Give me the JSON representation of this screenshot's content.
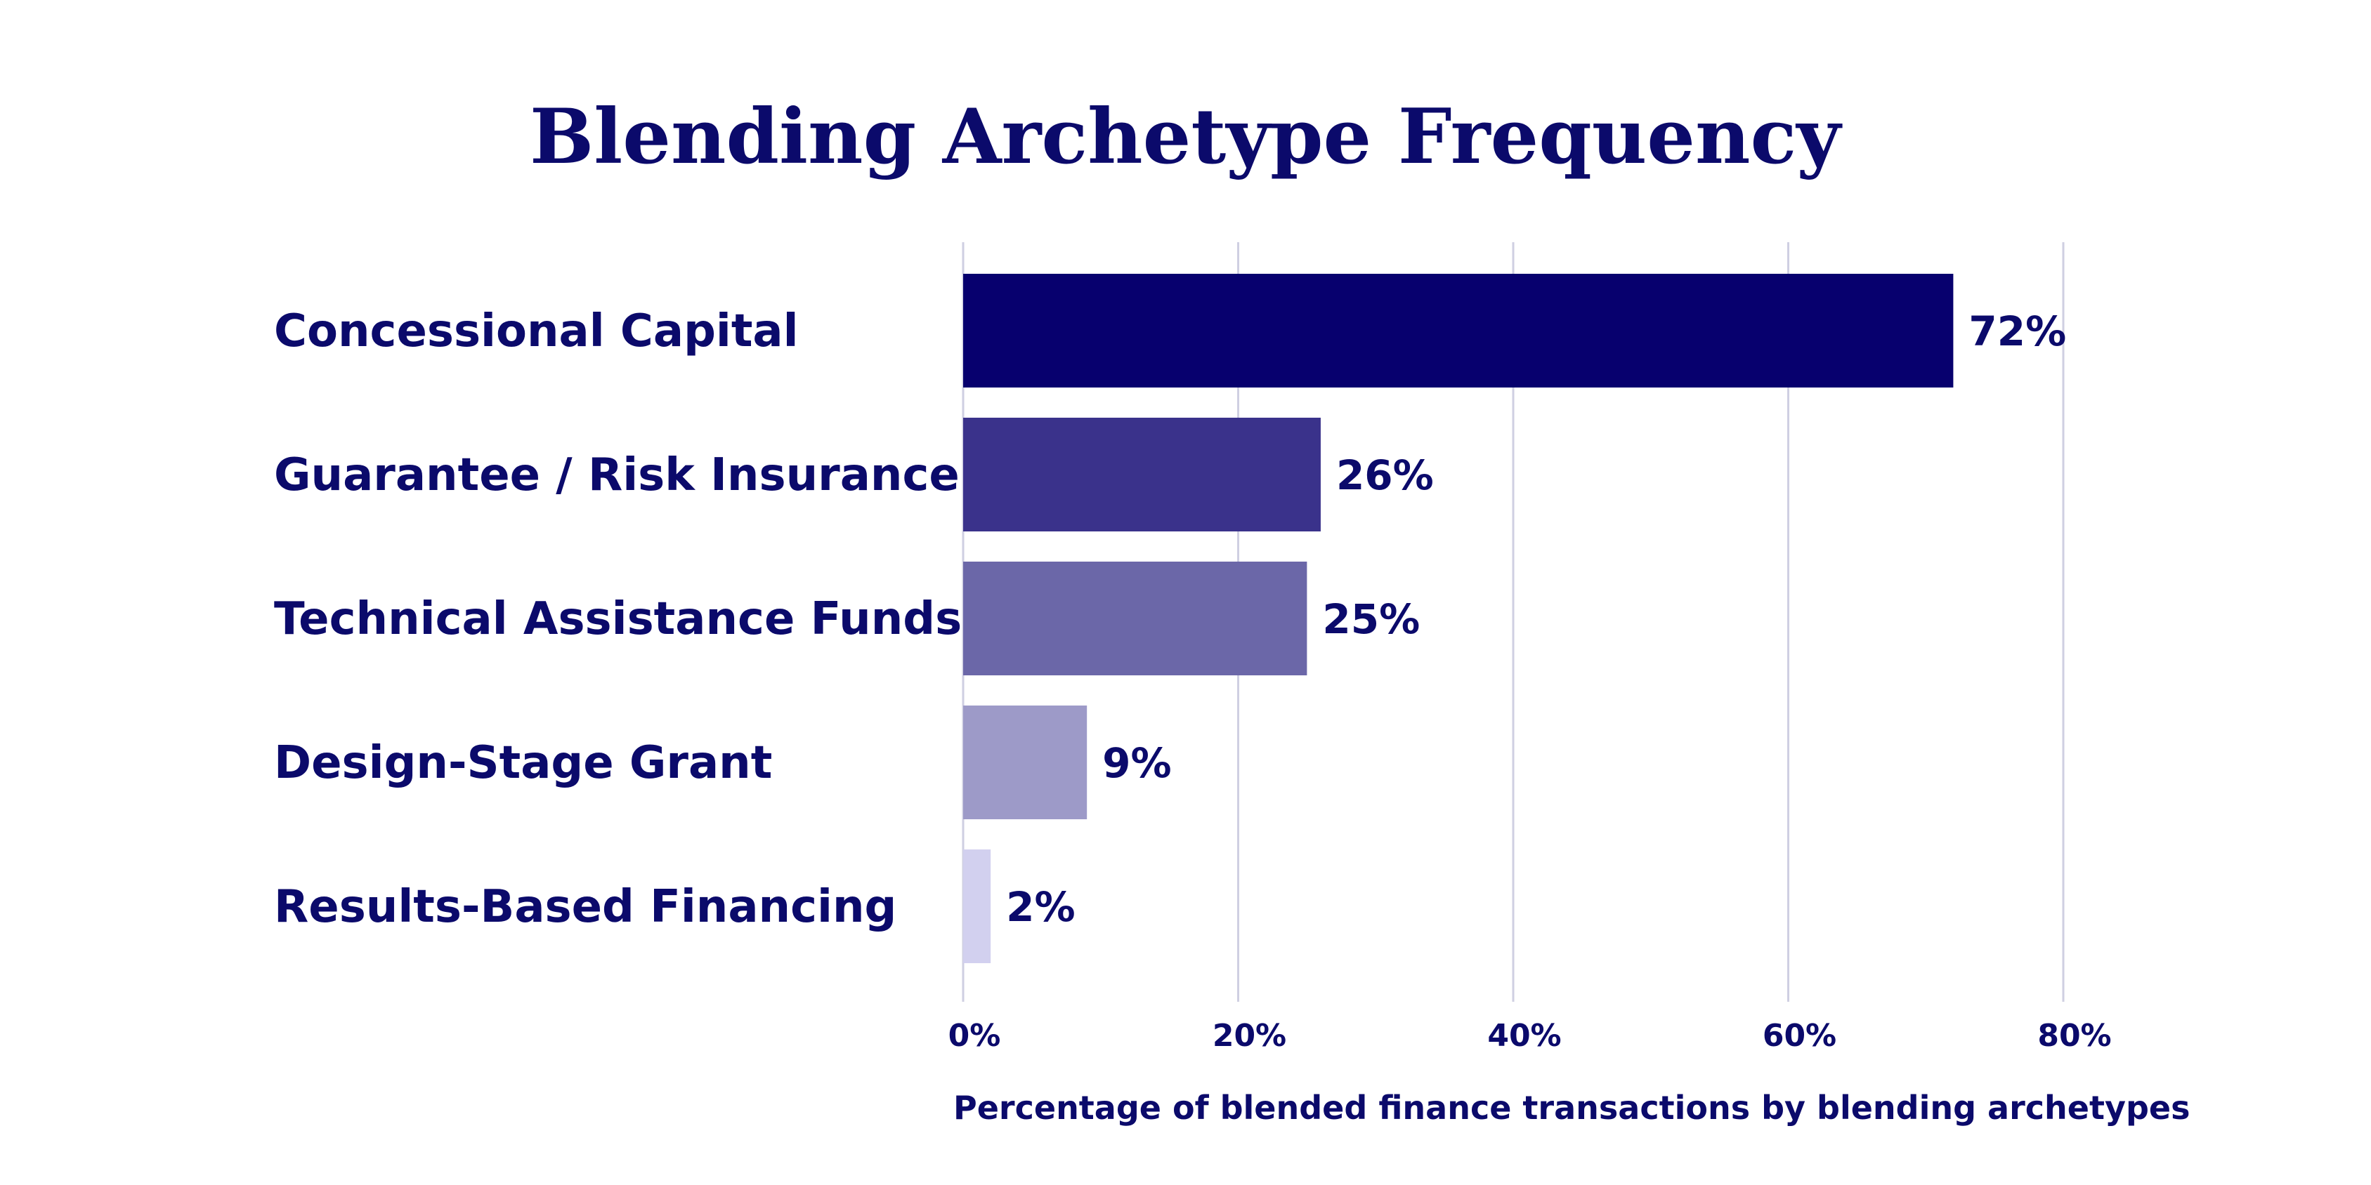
{
  "chart_data": {
    "type": "bar",
    "orientation": "horizontal",
    "title": "Blending Archetype Frequency",
    "xlabel": "Percentage of blended finance transactions by blending archetypes",
    "ylabel": "",
    "categories": [
      "Concessional Capital",
      "Guarantee / Risk Insurance",
      "Technical Assistance Funds",
      "Design-Stage Grant",
      "Results-Based Financing"
    ],
    "values": [
      72,
      26,
      25,
      9,
      2
    ],
    "value_labels": [
      "72%",
      "26%",
      "25%",
      "9%",
      "2%"
    ],
    "bar_colors": [
      "#07006e",
      "#3a328b",
      "#6b67a8",
      "#9d9ac8",
      "#d2d0ef"
    ],
    "xlim": [
      0,
      80
    ],
    "xticks": [
      0,
      20,
      40,
      60,
      80
    ],
    "xtick_labels": [
      "0%",
      "20%",
      "40%",
      "60%",
      "80%"
    ],
    "grid": "vertical",
    "legend": "none"
  },
  "colors": {
    "text": "#0b0a6b",
    "grid": "#cfcfe2"
  }
}
